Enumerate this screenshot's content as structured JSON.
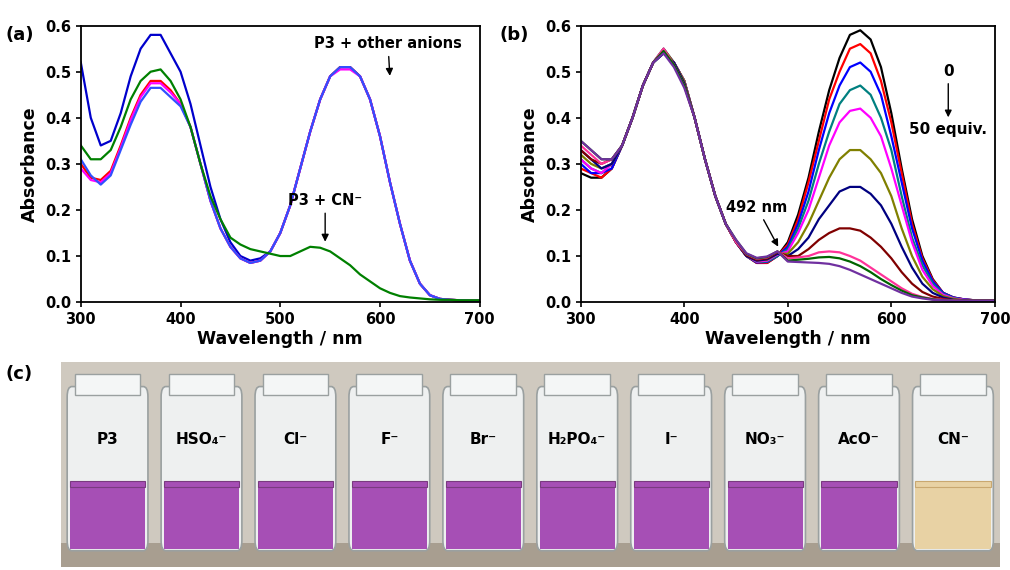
{
  "chart_data": [
    {
      "type": "line",
      "title": "(a)",
      "x_label": "Wavelength / nm",
      "y_label": "Absorbance",
      "x": [
        300,
        310,
        320,
        330,
        340,
        350,
        360,
        370,
        380,
        390,
        400,
        410,
        420,
        430,
        440,
        450,
        460,
        470,
        480,
        490,
        500,
        510,
        520,
        530,
        540,
        550,
        560,
        570,
        580,
        590,
        600,
        610,
        620,
        630,
        640,
        650,
        660,
        670,
        680,
        690,
        700
      ],
      "xlim": [
        300,
        700
      ],
      "xticks": [
        300,
        400,
        500,
        600,
        700
      ],
      "ylim": [
        0,
        0.6
      ],
      "yticks": [
        {
          "value": 0,
          "label": "0.0"
        },
        0.1,
        0.2,
        0.3,
        0.4,
        0.5,
        0.6
      ],
      "annotations": [
        "P3 + other anions",
        "P3 + CN⁻"
      ],
      "series": [
        {
          "color": "#0000cc",
          "values": [
            0.52,
            0.4,
            0.34,
            0.35,
            0.41,
            0.49,
            0.55,
            0.58,
            0.58,
            0.54,
            0.5,
            0.43,
            0.34,
            0.25,
            0.18,
            0.13,
            0.1,
            0.09,
            0.095,
            0.11,
            0.15,
            0.21,
            0.29,
            0.37,
            0.44,
            0.49,
            0.51,
            0.51,
            0.49,
            0.44,
            0.36,
            0.26,
            0.17,
            0.09,
            0.04,
            0.015,
            0.007,
            0.005,
            0.004,
            0.003,
            0.003
          ]
        },
        {
          "color": "#ff0000",
          "values": [
            0.3,
            0.27,
            0.265,
            0.285,
            0.34,
            0.4,
            0.45,
            0.48,
            0.48,
            0.46,
            0.43,
            0.38,
            0.3,
            0.22,
            0.16,
            0.12,
            0.095,
            0.085,
            0.09,
            0.11,
            0.15,
            0.21,
            0.29,
            0.37,
            0.44,
            0.49,
            0.51,
            0.51,
            0.49,
            0.44,
            0.36,
            0.26,
            0.17,
            0.09,
            0.04,
            0.015,
            0.007,
            0.005,
            0.004,
            0.003,
            0.003
          ]
        },
        {
          "color": "#ff00ff",
          "values": [
            0.29,
            0.265,
            0.26,
            0.28,
            0.335,
            0.395,
            0.445,
            0.475,
            0.475,
            0.455,
            0.43,
            0.38,
            0.3,
            0.22,
            0.16,
            0.12,
            0.095,
            0.085,
            0.09,
            0.11,
            0.15,
            0.21,
            0.29,
            0.37,
            0.44,
            0.49,
            0.505,
            0.505,
            0.49,
            0.44,
            0.36,
            0.26,
            0.17,
            0.09,
            0.04,
            0.015,
            0.007,
            0.005,
            0.004,
            0.003,
            0.003
          ]
        },
        {
          "color": "#3050ff",
          "values": [
            0.31,
            0.275,
            0.255,
            0.275,
            0.33,
            0.385,
            0.435,
            0.465,
            0.465,
            0.445,
            0.425,
            0.38,
            0.3,
            0.22,
            0.16,
            0.12,
            0.095,
            0.085,
            0.09,
            0.11,
            0.15,
            0.21,
            0.29,
            0.37,
            0.44,
            0.49,
            0.51,
            0.51,
            0.49,
            0.44,
            0.36,
            0.26,
            0.17,
            0.09,
            0.04,
            0.015,
            0.007,
            0.005,
            0.004,
            0.003,
            0.003
          ]
        },
        {
          "color": "#008000",
          "values": [
            0.34,
            0.31,
            0.31,
            0.33,
            0.38,
            0.44,
            0.48,
            0.5,
            0.505,
            0.48,
            0.44,
            0.38,
            0.3,
            0.23,
            0.18,
            0.14,
            0.125,
            0.115,
            0.11,
            0.105,
            0.1,
            0.1,
            0.11,
            0.12,
            0.118,
            0.11,
            0.095,
            0.08,
            0.06,
            0.045,
            0.03,
            0.02,
            0.013,
            0.01,
            0.008,
            0.006,
            0.005,
            0.005,
            0.004,
            0.004,
            0.004
          ]
        }
      ]
    },
    {
      "type": "line",
      "title": "(b)",
      "x_label": "Wavelength / nm",
      "y_label": "Absorbance",
      "x": [
        300,
        310,
        320,
        330,
        340,
        350,
        360,
        370,
        380,
        390,
        400,
        410,
        420,
        430,
        440,
        450,
        460,
        470,
        480,
        490,
        500,
        510,
        520,
        530,
        540,
        550,
        560,
        570,
        580,
        590,
        600,
        610,
        620,
        630,
        640,
        650,
        660,
        670,
        680,
        690,
        700
      ],
      "xlim": [
        300,
        700
      ],
      "xticks": [
        300,
        400,
        500,
        600,
        700
      ],
      "ylim": [
        0,
        0.6
      ],
      "yticks": [
        {
          "value": 0,
          "label": "0.0"
        },
        0.1,
        0.2,
        0.3,
        0.4,
        0.5,
        0.6
      ],
      "annotations": [
        "492 nm",
        "0",
        "50 equiv."
      ],
      "series": [
        {
          "color": "#000000",
          "values": [
            0.28,
            0.27,
            0.27,
            0.29,
            0.34,
            0.4,
            0.47,
            0.52,
            0.54,
            0.52,
            0.48,
            0.4,
            0.31,
            0.23,
            0.17,
            0.13,
            0.1,
            0.085,
            0.085,
            0.1,
            0.13,
            0.19,
            0.27,
            0.37,
            0.46,
            0.53,
            0.58,
            0.59,
            0.57,
            0.51,
            0.41,
            0.29,
            0.18,
            0.1,
            0.05,
            0.02,
            0.01,
            0.006,
            0.004,
            0.003,
            0.003
          ]
        },
        {
          "color": "#ff0000",
          "values": [
            0.29,
            0.28,
            0.27,
            0.29,
            0.34,
            0.4,
            0.47,
            0.52,
            0.545,
            0.52,
            0.48,
            0.4,
            0.31,
            0.23,
            0.17,
            0.13,
            0.1,
            0.085,
            0.085,
            0.1,
            0.125,
            0.18,
            0.26,
            0.35,
            0.44,
            0.5,
            0.55,
            0.56,
            0.54,
            0.48,
            0.39,
            0.28,
            0.17,
            0.095,
            0.048,
            0.02,
            0.01,
            0.006,
            0.004,
            0.003,
            0.003
          ]
        },
        {
          "color": "#0000ff",
          "values": [
            0.3,
            0.28,
            0.28,
            0.29,
            0.34,
            0.4,
            0.47,
            0.52,
            0.55,
            0.52,
            0.48,
            0.4,
            0.31,
            0.23,
            0.17,
            0.13,
            0.1,
            0.086,
            0.087,
            0.1,
            0.12,
            0.17,
            0.24,
            0.33,
            0.41,
            0.47,
            0.51,
            0.52,
            0.5,
            0.45,
            0.36,
            0.26,
            0.16,
            0.09,
            0.045,
            0.02,
            0.01,
            0.006,
            0.004,
            0.003,
            0.003
          ]
        },
        {
          "color": "#008080",
          "values": [
            0.31,
            0.29,
            0.28,
            0.3,
            0.34,
            0.4,
            0.47,
            0.52,
            0.54,
            0.52,
            0.48,
            0.4,
            0.31,
            0.23,
            0.17,
            0.13,
            0.1,
            0.087,
            0.088,
            0.1,
            0.115,
            0.16,
            0.22,
            0.3,
            0.37,
            0.43,
            0.46,
            0.47,
            0.45,
            0.4,
            0.33,
            0.23,
            0.14,
            0.08,
            0.04,
            0.018,
            0.009,
            0.005,
            0.004,
            0.003,
            0.003
          ]
        },
        {
          "color": "#ff00ff",
          "values": [
            0.31,
            0.29,
            0.28,
            0.3,
            0.34,
            0.4,
            0.47,
            0.52,
            0.545,
            0.52,
            0.48,
            0.4,
            0.31,
            0.23,
            0.17,
            0.13,
            0.1,
            0.088,
            0.09,
            0.103,
            0.11,
            0.15,
            0.2,
            0.27,
            0.34,
            0.39,
            0.415,
            0.42,
            0.4,
            0.36,
            0.29,
            0.21,
            0.13,
            0.07,
            0.035,
            0.016,
            0.008,
            0.005,
            0.004,
            0.003,
            0.003
          ]
        },
        {
          "color": "#808000",
          "values": [
            0.32,
            0.3,
            0.29,
            0.3,
            0.34,
            0.4,
            0.47,
            0.52,
            0.55,
            0.52,
            0.48,
            0.4,
            0.31,
            0.23,
            0.17,
            0.13,
            0.1,
            0.09,
            0.092,
            0.105,
            0.105,
            0.13,
            0.17,
            0.22,
            0.27,
            0.31,
            0.33,
            0.33,
            0.31,
            0.28,
            0.23,
            0.16,
            0.1,
            0.055,
            0.028,
            0.013,
            0.007,
            0.004,
            0.003,
            0.003,
            0.003
          ]
        },
        {
          "color": "#000080",
          "values": [
            0.33,
            0.31,
            0.29,
            0.3,
            0.34,
            0.4,
            0.47,
            0.52,
            0.54,
            0.52,
            0.475,
            0.4,
            0.31,
            0.23,
            0.17,
            0.13,
            0.1,
            0.09,
            0.093,
            0.105,
            0.1,
            0.115,
            0.14,
            0.18,
            0.21,
            0.24,
            0.25,
            0.25,
            0.235,
            0.21,
            0.17,
            0.12,
            0.075,
            0.04,
            0.02,
            0.01,
            0.005,
            0.004,
            0.003,
            0.003,
            0.003
          ]
        },
        {
          "color": "#800000",
          "values": [
            0.33,
            0.31,
            0.3,
            0.31,
            0.34,
            0.4,
            0.47,
            0.52,
            0.545,
            0.515,
            0.47,
            0.4,
            0.31,
            0.23,
            0.17,
            0.13,
            0.102,
            0.092,
            0.095,
            0.108,
            0.1,
            0.1,
            0.115,
            0.135,
            0.15,
            0.16,
            0.16,
            0.155,
            0.14,
            0.12,
            0.095,
            0.065,
            0.04,
            0.022,
            0.012,
            0.007,
            0.004,
            0.003,
            0.003,
            0.003,
            0.003
          ]
        },
        {
          "color": "#ff3399",
          "values": [
            0.34,
            0.32,
            0.3,
            0.31,
            0.34,
            0.4,
            0.47,
            0.52,
            0.55,
            0.515,
            0.47,
            0.4,
            0.31,
            0.23,
            0.17,
            0.13,
            0.104,
            0.094,
            0.097,
            0.11,
            0.095,
            0.097,
            0.1,
            0.108,
            0.11,
            0.108,
            0.1,
            0.09,
            0.075,
            0.06,
            0.045,
            0.03,
            0.018,
            0.011,
            0.007,
            0.005,
            0.004,
            0.003,
            0.003,
            0.003,
            0.003
          ]
        },
        {
          "color": "#006400",
          "values": [
            0.35,
            0.33,
            0.31,
            0.31,
            0.34,
            0.4,
            0.47,
            0.52,
            0.545,
            0.515,
            0.47,
            0.4,
            0.31,
            0.23,
            0.17,
            0.135,
            0.105,
            0.095,
            0.098,
            0.11,
            0.09,
            0.092,
            0.094,
            0.097,
            0.098,
            0.095,
            0.088,
            0.078,
            0.065,
            0.05,
            0.037,
            0.025,
            0.015,
            0.01,
            0.006,
            0.004,
            0.003,
            0.003,
            0.003,
            0.003,
            0.003
          ]
        },
        {
          "color": "#7030a0",
          "values": [
            0.35,
            0.33,
            0.31,
            0.31,
            0.34,
            0.4,
            0.47,
            0.52,
            0.54,
            0.51,
            0.465,
            0.4,
            0.31,
            0.23,
            0.17,
            0.135,
            0.106,
            0.096,
            0.099,
            0.11,
            0.088,
            0.087,
            0.086,
            0.085,
            0.083,
            0.078,
            0.07,
            0.06,
            0.05,
            0.04,
            0.03,
            0.02,
            0.012,
            0.008,
            0.005,
            0.004,
            0.003,
            0.003,
            0.003,
            0.003,
            0.003
          ]
        }
      ]
    }
  ],
  "photo": {
    "title": "(c)",
    "labels": [
      "P3",
      "HSO₄⁻",
      "Cl⁻",
      "F⁻",
      "Br⁻",
      "H₂PO₄⁻",
      "I⁻",
      "NO₃⁻",
      "AcO⁻",
      "CN⁻"
    ],
    "colors": [
      "#a64fb5",
      "#a64fb5",
      "#a64fb5",
      "#a64fb5",
      "#a64fb5",
      "#a64fb5",
      "#a64fb5",
      "#a64fb5",
      "#a64fb5",
      "#e8d2a4"
    ]
  }
}
